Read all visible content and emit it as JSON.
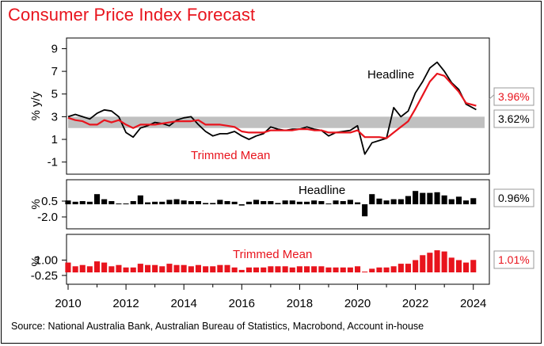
{
  "title": "Consumer Price Index Forecast",
  "source": "Source: National Australia Bank, Australian Bureau of Statistics, Macrobond, Account in-house",
  "colors": {
    "headline": "#000000",
    "trimmed": "#e8141d",
    "band": "#c0c0c0"
  },
  "chart_data": [
    {
      "type": "line",
      "ylabel": "% y/y",
      "ylim": [
        -2,
        9.8
      ],
      "yticks": [
        "9",
        "7",
        "5",
        "3",
        "1",
        "-1"
      ],
      "target_band": [
        2,
        3
      ],
      "series": [
        {
          "name": "Headline",
          "end_label": "3.62%",
          "points": [
            [
              2010,
              3.0
            ],
            [
              2010.25,
              3.2
            ],
            [
              2010.5,
              3.0
            ],
            [
              2010.75,
              2.8
            ],
            [
              2011,
              3.3
            ],
            [
              2011.25,
              3.6
            ],
            [
              2011.5,
              3.5
            ],
            [
              2011.75,
              3.0
            ],
            [
              2012,
              1.6
            ],
            [
              2012.25,
              1.2
            ],
            [
              2012.5,
              2.0
            ],
            [
              2012.75,
              2.2
            ],
            [
              2013,
              2.5
            ],
            [
              2013.25,
              2.4
            ],
            [
              2013.5,
              2.2
            ],
            [
              2013.75,
              2.7
            ],
            [
              2014,
              2.9
            ],
            [
              2014.25,
              3.0
            ],
            [
              2014.5,
              2.3
            ],
            [
              2014.75,
              1.7
            ],
            [
              2015,
              1.3
            ],
            [
              2015.25,
              1.5
            ],
            [
              2015.5,
              1.5
            ],
            [
              2015.75,
              1.7
            ],
            [
              2016,
              1.3
            ],
            [
              2016.25,
              1.0
            ],
            [
              2016.5,
              1.3
            ],
            [
              2016.75,
              1.5
            ],
            [
              2017,
              2.1
            ],
            [
              2017.25,
              1.9
            ],
            [
              2017.5,
              1.8
            ],
            [
              2017.75,
              1.9
            ],
            [
              2018,
              1.9
            ],
            [
              2018.25,
              2.1
            ],
            [
              2018.5,
              1.9
            ],
            [
              2018.75,
              1.8
            ],
            [
              2019,
              1.3
            ],
            [
              2019.25,
              1.6
            ],
            [
              2019.5,
              1.7
            ],
            [
              2019.75,
              1.8
            ],
            [
              2020,
              2.2
            ],
            [
              2020.25,
              -0.3
            ],
            [
              2020.5,
              0.7
            ],
            [
              2020.75,
              0.9
            ],
            [
              2021,
              1.1
            ],
            [
              2021.25,
              3.8
            ],
            [
              2021.5,
              3.0
            ],
            [
              2021.75,
              3.5
            ],
            [
              2022,
              5.1
            ],
            [
              2022.25,
              6.1
            ],
            [
              2022.5,
              7.3
            ],
            [
              2022.75,
              7.8
            ],
            [
              2023,
              7.0
            ],
            [
              2023.25,
              6.0
            ],
            [
              2023.5,
              5.4
            ],
            [
              2023.75,
              4.1
            ],
            [
              2024.1,
              3.62
            ]
          ]
        },
        {
          "name": "Trimmed Mean",
          "end_label": "3.96%",
          "points": [
            [
              2010,
              2.9
            ],
            [
              2010.25,
              2.7
            ],
            [
              2010.5,
              2.6
            ],
            [
              2010.75,
              2.3
            ],
            [
              2011,
              2.3
            ],
            [
              2011.25,
              2.7
            ],
            [
              2011.5,
              2.5
            ],
            [
              2011.75,
              2.7
            ],
            [
              2012,
              2.3
            ],
            [
              2012.25,
              2.0
            ],
            [
              2012.5,
              2.3
            ],
            [
              2012.75,
              2.3
            ],
            [
              2013,
              2.3
            ],
            [
              2013.25,
              2.4
            ],
            [
              2013.5,
              2.5
            ],
            [
              2013.75,
              2.6
            ],
            [
              2014,
              2.6
            ],
            [
              2014.25,
              2.6
            ],
            [
              2014.5,
              2.7
            ],
            [
              2014.75,
              2.3
            ],
            [
              2015,
              2.3
            ],
            [
              2015.25,
              2.3
            ],
            [
              2015.5,
              2.2
            ],
            [
              2015.75,
              2.1
            ],
            [
              2016,
              1.7
            ],
            [
              2016.25,
              1.6
            ],
            [
              2016.5,
              1.6
            ],
            [
              2016.75,
              1.6
            ],
            [
              2017,
              1.8
            ],
            [
              2017.25,
              1.8
            ],
            [
              2017.5,
              1.8
            ],
            [
              2017.75,
              1.8
            ],
            [
              2018,
              1.9
            ],
            [
              2018.25,
              1.9
            ],
            [
              2018.5,
              1.8
            ],
            [
              2018.75,
              1.8
            ],
            [
              2019,
              1.6
            ],
            [
              2019.25,
              1.6
            ],
            [
              2019.5,
              1.6
            ],
            [
              2019.75,
              1.6
            ],
            [
              2020,
              1.8
            ],
            [
              2020.25,
              1.2
            ],
            [
              2020.5,
              1.2
            ],
            [
              2020.75,
              1.2
            ],
            [
              2021,
              1.1
            ],
            [
              2021.25,
              1.6
            ],
            [
              2021.5,
              2.1
            ],
            [
              2021.75,
              2.6
            ],
            [
              2022,
              3.7
            ],
            [
              2022.25,
              4.9
            ],
            [
              2022.5,
              6.1
            ],
            [
              2022.75,
              6.8
            ],
            [
              2023,
              6.6
            ],
            [
              2023.25,
              5.9
            ],
            [
              2023.5,
              5.2
            ],
            [
              2023.75,
              4.2
            ],
            [
              2024.1,
              3.96
            ]
          ]
        }
      ]
    },
    {
      "type": "bar",
      "name": "Headline",
      "ylabel": "%",
      "yticks": [
        "0.5",
        "-2.0"
      ],
      "end_label": "0.96%",
      "x_start": 2010,
      "step": 0.25,
      "values": [
        0.6,
        0.4,
        0.5,
        0.4,
        1.6,
        0.8,
        0.5,
        0.0,
        0.1,
        0.5,
        1.4,
        0.3,
        0.4,
        0.4,
        0.7,
        0.8,
        0.6,
        0.5,
        0.5,
        0.2,
        0.2,
        0.7,
        0.5,
        0.4,
        -0.2,
        0.4,
        0.7,
        0.5,
        0.5,
        0.2,
        0.6,
        0.6,
        0.4,
        0.4,
        0.6,
        0.5,
        0.0,
        0.6,
        0.5,
        0.7,
        0.3,
        -1.9,
        1.6,
        0.9,
        0.6,
        0.8,
        0.8,
        1.3,
        2.1,
        1.8,
        1.8,
        1.9,
        1.4,
        0.8,
        1.2,
        0.6,
        0.96
      ]
    },
    {
      "type": "bar",
      "name": "Trimmed Mean",
      "ylabel": "%",
      "yticks": [
        "1.00",
        "-0.25"
      ],
      "end_label": "1.01%",
      "x_start": 2010,
      "step": 0.25,
      "values": [
        0.8,
        0.5,
        0.6,
        0.5,
        0.9,
        0.8,
        0.5,
        0.6,
        0.4,
        0.4,
        0.7,
        0.6,
        0.6,
        0.5,
        0.7,
        0.6,
        0.6,
        0.5,
        0.6,
        0.5,
        0.5,
        0.6,
        0.6,
        0.4,
        0.2,
        0.4,
        0.4,
        0.4,
        0.5,
        0.5,
        0.5,
        0.4,
        0.5,
        0.5,
        0.5,
        0.5,
        0.4,
        0.4,
        0.4,
        0.4,
        0.5,
        0.0,
        0.3,
        0.4,
        0.4,
        0.5,
        0.7,
        0.7,
        1.0,
        1.4,
        1.6,
        1.8,
        1.7,
        1.2,
        1.0,
        0.8,
        1.01
      ]
    }
  ],
  "x_axis": {
    "ticks": [
      "2010",
      "2012",
      "2014",
      "2016",
      "2018",
      "2020",
      "2022",
      "2024"
    ]
  }
}
